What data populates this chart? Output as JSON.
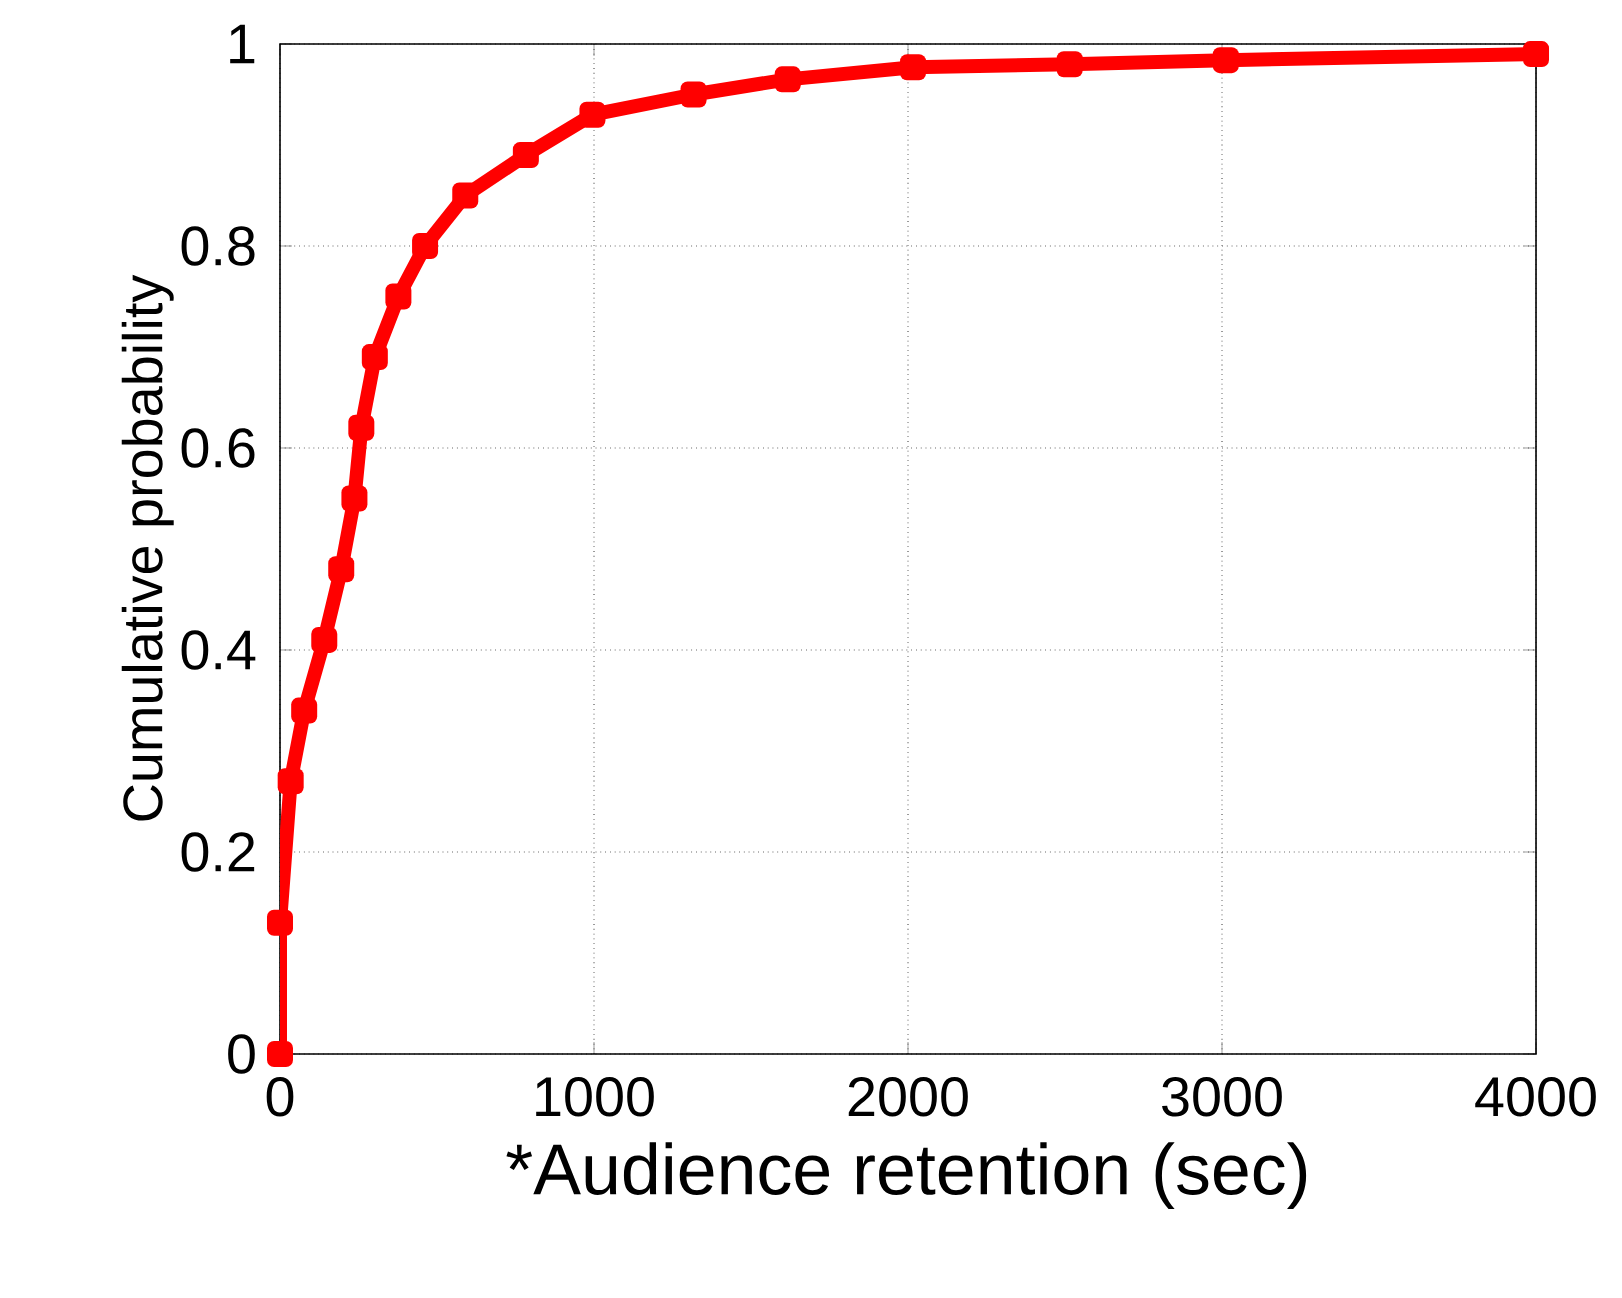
{
  "chart_data": {
    "type": "line",
    "xlabel": "*Audience retention (sec)",
    "ylabel": "Cumulative probability",
    "xlim": [
      0,
      4000
    ],
    "ylim": [
      0,
      1
    ],
    "xticks": [
      0,
      1000,
      2000,
      3000,
      4000
    ],
    "yticks": [
      0,
      0.2,
      0.4,
      0.6,
      0.8,
      1
    ],
    "grid": true,
    "marker": "square",
    "line_style": "solid",
    "series": [
      {
        "color": "#ff0000",
        "x": [
          0,
          0,
          34,
          77,
          141,
          195,
          237,
          259,
          302,
          377,
          462,
          590,
          783,
          995,
          1317,
          1617,
          2016,
          2515,
          3012,
          4000
        ],
        "values": [
          0,
          0.13,
          0.27,
          0.34,
          0.41,
          0.48,
          0.55,
          0.62,
          0.69,
          0.75,
          0.8,
          0.85,
          0.89,
          0.93,
          0.95,
          0.965,
          0.977,
          0.98,
          0.984,
          0.99
        ]
      }
    ]
  }
}
